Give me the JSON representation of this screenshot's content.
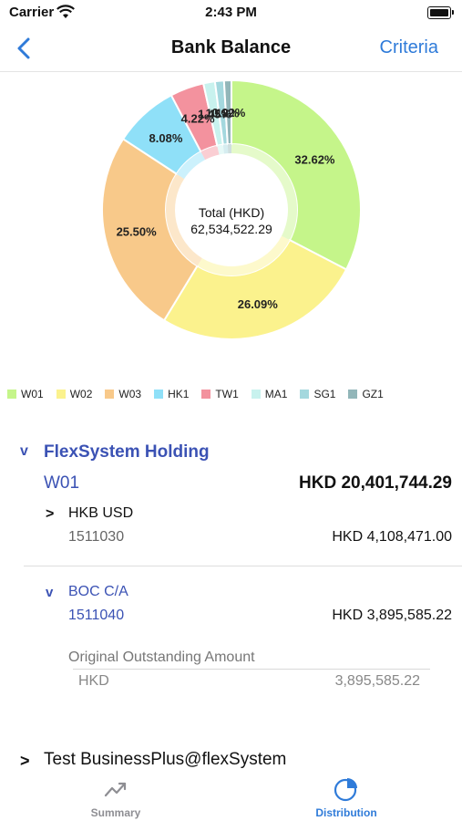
{
  "status_bar": {
    "carrier": "Carrier",
    "time": "2:43 PM"
  },
  "nav": {
    "title": "Bank Balance",
    "right_button": "Criteria"
  },
  "chart_data": {
    "type": "pie",
    "center_label": "Total (HKD)",
    "center_value": "62,534,522.29",
    "labels": [
      "W01",
      "W02",
      "W03",
      "HK1",
      "TW1",
      "MA1",
      "SG1",
      "GZ1"
    ],
    "values": [
      32.62,
      26.09,
      25.5,
      8.08,
      4.22,
      1.45,
      1.12,
      0.92
    ],
    "value_labels": [
      "32.62%",
      "26.09%",
      "25.50%",
      "8.08%",
      "4.22%",
      "1.45%",
      "1.12%",
      "0.92%"
    ],
    "colors": [
      "#c5f58a",
      "#fbf28d",
      "#f8c98a",
      "#8fe0f8",
      "#f3929e",
      "#c8f2ee",
      "#a4d8de",
      "#92b6b9"
    ],
    "legend_position": "bottom"
  },
  "group": {
    "expand_icon": "v",
    "name": "FlexSystem Holding",
    "code": "W01",
    "amount": "HKD 20,401,744.29"
  },
  "accounts": [
    {
      "expand_icon": ">",
      "name": "HKB USD",
      "number": "1511030",
      "amount": "HKD 4,108,471.00"
    },
    {
      "expand_icon": "v",
      "name": "BOC C/A",
      "number": "1511040",
      "amount": "HKD 3,895,585.22"
    }
  ],
  "outstanding": {
    "title": "Original Outstanding Amount",
    "currency": "HKD",
    "value": "3,895,585.22"
  },
  "next_group": {
    "expand_icon": ">",
    "name": "Test BusinessPlus@flexSystem"
  },
  "tabs": [
    {
      "label": "Summary",
      "icon": "trend-line-icon",
      "color": "#8e8e93"
    },
    {
      "label": "Distribution",
      "icon": "pie-chart-icon",
      "color": "#2f7bd9"
    }
  ]
}
